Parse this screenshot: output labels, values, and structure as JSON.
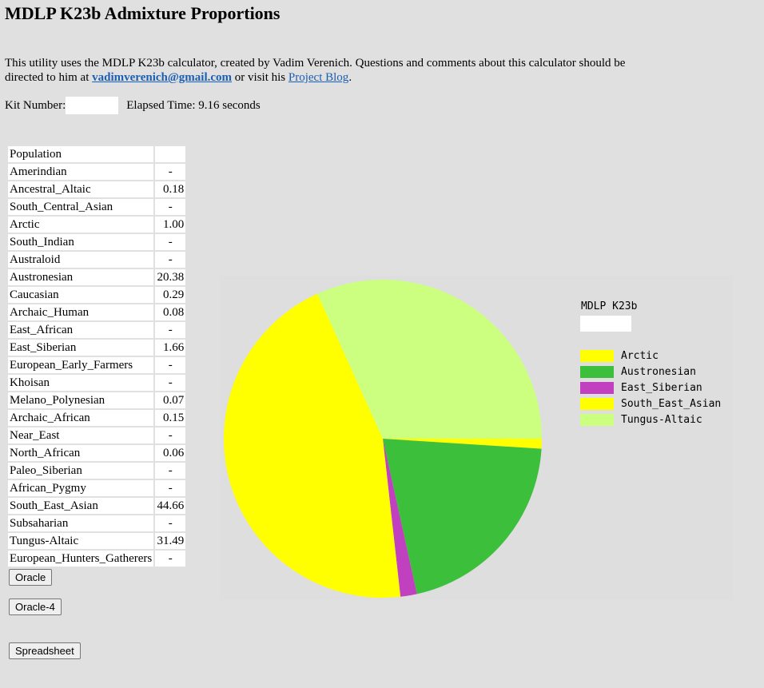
{
  "page": {
    "title": "MDLP K23b Admixture Proportions",
    "intro_part1": "This utility uses the MDLP K23b calculator, created by Vadim Verenich. Questions and comments about this calculator should be directed to him at ",
    "email_link": "vadimverenich@gmail.com",
    "intro_part2": " or visit his ",
    "blog_link": "Project Blog",
    "intro_part3": ".",
    "kit_label": "Kit Number:",
    "kit_value": "",
    "elapsed": "Elapsed Time: 9.16 seconds"
  },
  "table": {
    "header": [
      "Population",
      ""
    ],
    "rows": [
      [
        "Amerindian",
        "-"
      ],
      [
        "Ancestral_Altaic",
        "0.18"
      ],
      [
        "South_Central_Asian",
        "-"
      ],
      [
        "Arctic",
        "1.00"
      ],
      [
        "South_Indian",
        "-"
      ],
      [
        "Australoid",
        "-"
      ],
      [
        "Austronesian",
        "20.38"
      ],
      [
        "Caucasian",
        "0.29"
      ],
      [
        "Archaic_Human",
        "0.08"
      ],
      [
        "East_African",
        "-"
      ],
      [
        "East_Siberian",
        "1.66"
      ],
      [
        "European_Early_Farmers",
        "-"
      ],
      [
        "Khoisan",
        "-"
      ],
      [
        "Melano_Polynesian",
        "0.07"
      ],
      [
        "Archaic_African",
        "0.15"
      ],
      [
        "Near_East",
        "-"
      ],
      [
        "North_African",
        "0.06"
      ],
      [
        "Paleo_Siberian",
        "-"
      ],
      [
        "African_Pygmy",
        "-"
      ],
      [
        "South_East_Asian",
        "44.66"
      ],
      [
        "Subsaharian",
        "-"
      ],
      [
        "Tungus-Altaic",
        "31.49"
      ],
      [
        "European_Hunters_Gatherers",
        "-"
      ]
    ]
  },
  "buttons": {
    "oracle": "Oracle",
    "oracle4": "Oracle-4",
    "spreadsheet": "Spreadsheet"
  },
  "chart_data": {
    "type": "pie",
    "title": "MDLP K23b",
    "subtitle": "",
    "series": [
      {
        "name": "Arctic",
        "value": 1.0,
        "color": "#ffff00"
      },
      {
        "name": "Austronesian",
        "value": 20.38,
        "color": "#3cc03c"
      },
      {
        "name": "East_Siberian",
        "value": 1.66,
        "color": "#c040c0"
      },
      {
        "name": "South_East_Asian",
        "value": 44.66,
        "color": "#ffff00"
      },
      {
        "name": "Tungus-Altaic",
        "value": 31.49,
        "color": "#ccff80"
      }
    ],
    "legend_position": "right"
  }
}
